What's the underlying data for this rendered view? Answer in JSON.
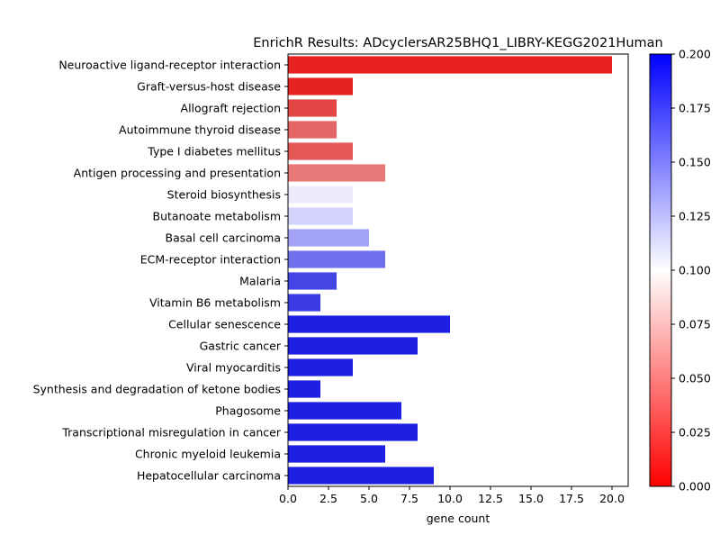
{
  "chart_data": {
    "type": "bar",
    "orientation": "horizontal",
    "title": "EnrichR Results: ADcyclersAR25BHQ1_LIBRY-KEGG2021Human",
    "xlabel": "gene count",
    "ylabel": "",
    "xlim": [
      0,
      21
    ],
    "x_ticks": [
      "0.0",
      "2.5",
      "5.0",
      "7.5",
      "10.0",
      "12.5",
      "15.0",
      "17.5",
      "20.0"
    ],
    "categories": [
      "Neuroactive ligand-receptor interaction",
      "Graft-versus-host disease",
      "Allograft rejection",
      "Autoimmune thyroid disease",
      "Type I diabetes mellitus",
      "Antigen processing and presentation",
      "Steroid biosynthesis",
      "Butanoate metabolism",
      "Basal cell carcinoma",
      "ECM-receptor interaction",
      "Malaria",
      "Vitamin B6 metabolism",
      "Cellular senescence",
      "Gastric cancer",
      "Viral myocarditis",
      "Synthesis and degradation of ketone bodies",
      "Phagosome",
      "Transcriptional misregulation in cancer",
      "Chronic myeloid leukemia",
      "Hepatocellular carcinoma"
    ],
    "values": [
      20,
      4,
      3,
      3,
      4,
      6,
      4,
      4,
      5,
      6,
      3,
      2,
      10,
      8,
      4,
      2,
      7,
      8,
      6,
      9
    ],
    "bar_colors": [
      "#e82222",
      "#e62222",
      "#e44545",
      "#e46565",
      "#e45858",
      "#e97878",
      "#ececfe",
      "#d2d2fc",
      "#a3a3f6",
      "#7070ee",
      "#4545e6",
      "#3c3ce6",
      "#1f1fe3",
      "#1f1fe3",
      "#1f1fe3",
      "#1f1fe3",
      "#1f1fe3",
      "#1f1fe3",
      "#1f1fe3",
      "#1f1fe3"
    ],
    "colorbar": {
      "range": [
        0,
        0.2
      ],
      "tick_labels": [
        "0.000",
        "0.025",
        "0.050",
        "0.075",
        "0.100",
        "0.125",
        "0.150",
        "0.175",
        "0.200"
      ],
      "colormap": [
        "#ff0000",
        "#ffffff",
        "#0000ff"
      ]
    },
    "grid": false,
    "legend": "none"
  }
}
